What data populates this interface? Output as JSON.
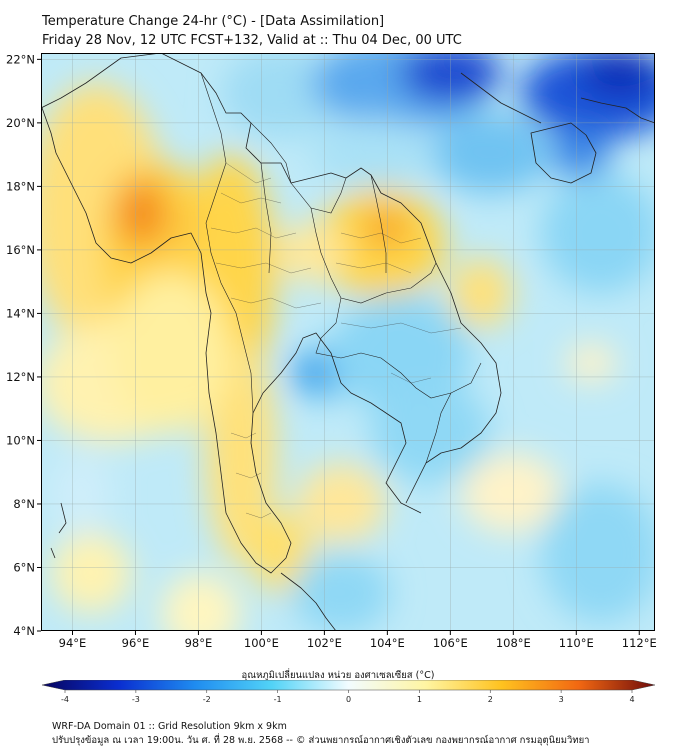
{
  "header": {
    "title_line1": "Temperature Change 24-hr (°C) - [Data Assimilation]",
    "title_line2": "Friday 28 Nov, 12 UTC FCST+132, Valid at :: Thu 04 Dec, 00 UTC"
  },
  "map": {
    "lon_range": [
      93,
      112.5
    ],
    "lat_range": [
      4,
      22.2
    ],
    "lon_ticks": [
      "94°E",
      "96°E",
      "98°E",
      "100°E",
      "102°E",
      "104°E",
      "106°E",
      "108°E",
      "110°E",
      "112°E"
    ],
    "lat_ticks": [
      "22°N",
      "20°N",
      "18°N",
      "16°N",
      "14°N",
      "12°N",
      "10°N",
      "8°N",
      "6°N",
      "4°N"
    ],
    "grid": true
  },
  "colorbar": {
    "label": "อุณหภูมิเปลี่ยนแปลง หน่วย องศาเซลเซียส (°C)",
    "min": -4,
    "max": 4,
    "tick_labels": [
      "-4",
      "-3",
      "-2",
      "-1",
      "0",
      "1",
      "2",
      "3",
      "4"
    ],
    "colors": {
      "neg4": "#08045e",
      "neg3": "#0a2ed0",
      "neg2": "#1f8cf0",
      "neg1": "#52d3f7",
      "zero": "#f2fcff",
      "pos1": "#fff5a3",
      "pos2": "#ffc21f",
      "pos3": "#f26812",
      "pos4": "#6e0b0b"
    }
  },
  "footer": {
    "line1": "WRF-DA Domain 01 :: Grid Resolution 9km x 9km",
    "line2": "ปรับปรุงข้อมูล ณ เวลา 19:00น. วัน ศ. ที่ 28 พ.ย. 2568 -- © ส่วนพยากรณ์อากาศเชิงตัวเลข กองพยากรณ์อากาศ กรมอุตุนิยมวิทยา"
  }
}
